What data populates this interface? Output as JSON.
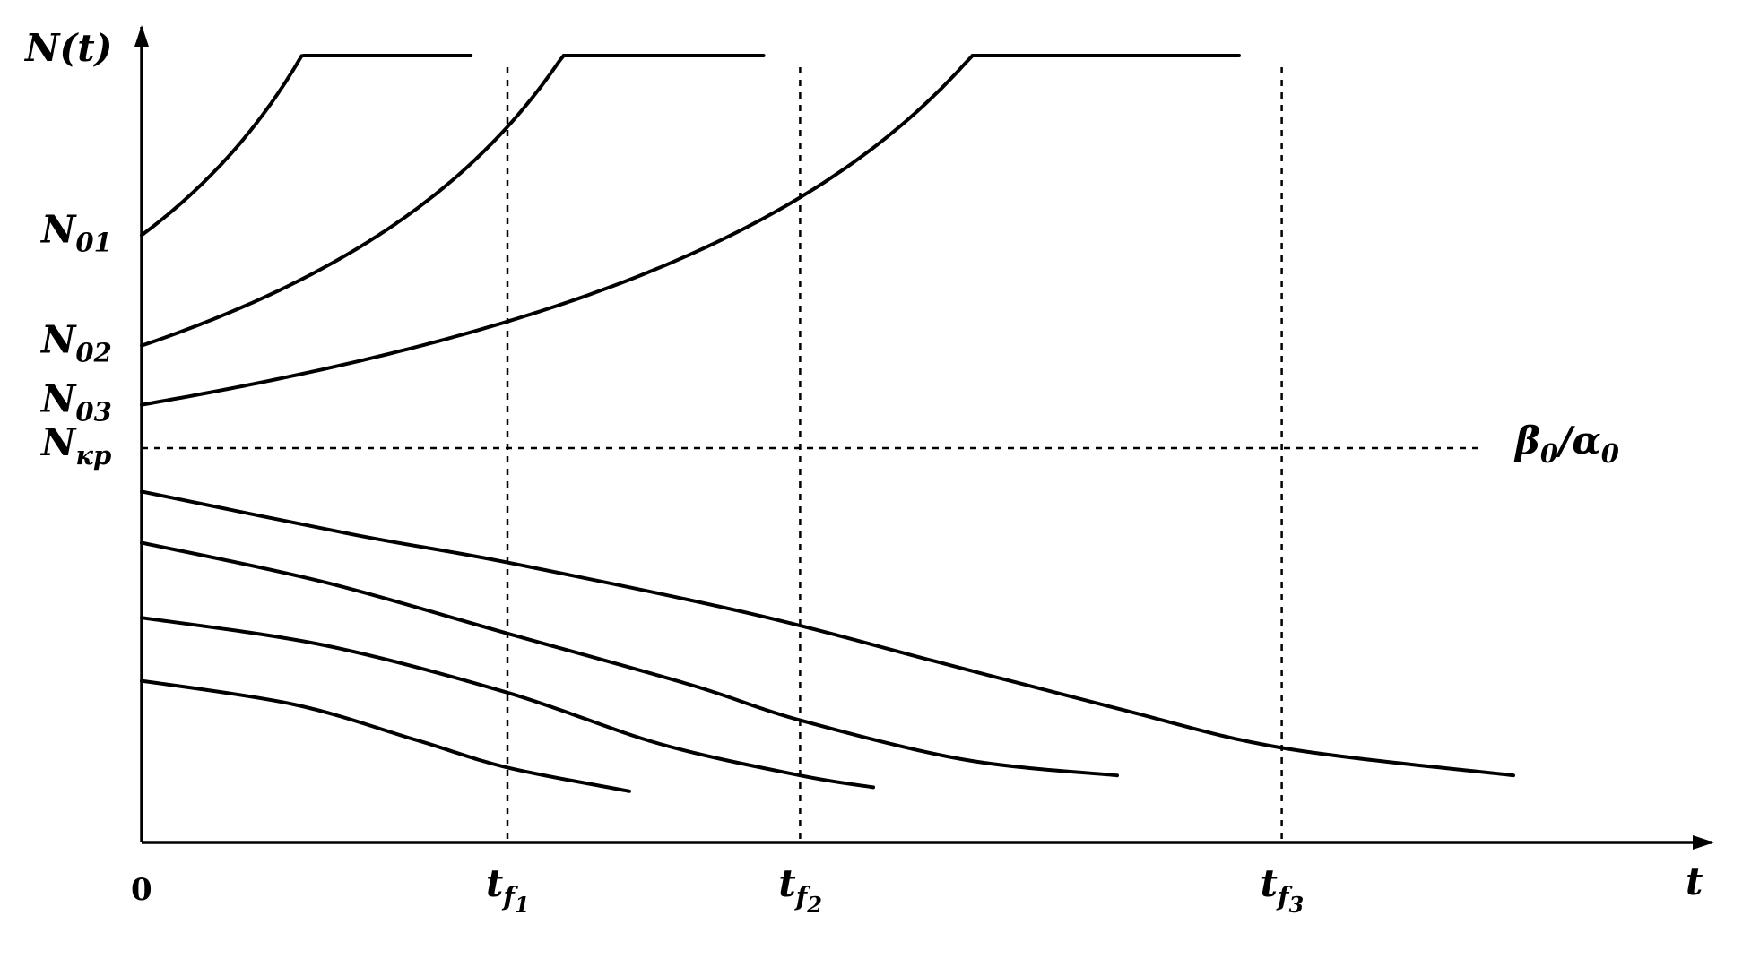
{
  "chart_data": {
    "type": "line",
    "title": "",
    "ylabel": "N(t)",
    "xlabel": "t",
    "origin_label": "0",
    "y_tick_labels": [
      {
        "main": "N",
        "sub": "01"
      },
      {
        "main": "N",
        "sub": "02"
      },
      {
        "main": "N",
        "sub": "03"
      },
      {
        "main": "N",
        "sub": "кр"
      }
    ],
    "x_tick_labels": [
      {
        "main": "t",
        "sub": "f",
        "subsub": "1"
      },
      {
        "main": "t",
        "sub": "f",
        "subsub": "2"
      },
      {
        "main": "t",
        "sub": "f",
        "subsub": "3"
      }
    ],
    "threshold": {
      "label_parts": [
        {
          "main": "β",
          "sub": "0"
        },
        {
          "sep": "/"
        },
        {
          "main": "α",
          "sub": "0"
        }
      ]
    },
    "xlim": [
      0,
      2.5
    ],
    "ylim": [
      0,
      1
    ],
    "t_f": [
      0.6,
      1.08,
      1.87
    ],
    "N_levels": {
      "N01": 0.77,
      "N02": 0.63,
      "N03": 0.555,
      "N_kr": 0.5
    },
    "series": [
      {
        "type": "blowup",
        "N0": 0.77,
        "tf": 0.6,
        "t_end": 0.54
      },
      {
        "type": "blowup",
        "N0": 0.63,
        "tf": 1.08,
        "t_end": 1.02
      },
      {
        "type": "blowup",
        "N0": 0.555,
        "tf": 1.87,
        "t_end": 1.8
      },
      {
        "type": "decay",
        "points": [
          [
            0,
            0.445
          ],
          [
            0.35,
            0.39
          ],
          [
            0.6,
            0.355
          ],
          [
            1.0,
            0.29
          ],
          [
            1.3,
            0.23
          ],
          [
            1.6,
            0.17
          ],
          [
            1.87,
            0.12
          ],
          [
            2.25,
            0.085
          ]
        ]
      },
      {
        "type": "decay",
        "points": [
          [
            0,
            0.38
          ],
          [
            0.3,
            0.33
          ],
          [
            0.6,
            0.265
          ],
          [
            0.9,
            0.2
          ],
          [
            1.08,
            0.155
          ],
          [
            1.35,
            0.105
          ],
          [
            1.6,
            0.085
          ]
        ]
      },
      {
        "type": "decay",
        "points": [
          [
            0,
            0.285
          ],
          [
            0.3,
            0.25
          ],
          [
            0.6,
            0.19
          ],
          [
            0.85,
            0.125
          ],
          [
            1.08,
            0.085
          ],
          [
            1.2,
            0.07
          ]
        ]
      },
      {
        "type": "decay",
        "points": [
          [
            0,
            0.205
          ],
          [
            0.25,
            0.175
          ],
          [
            0.45,
            0.13
          ],
          [
            0.6,
            0.095
          ],
          [
            0.8,
            0.065
          ]
        ]
      }
    ]
  }
}
